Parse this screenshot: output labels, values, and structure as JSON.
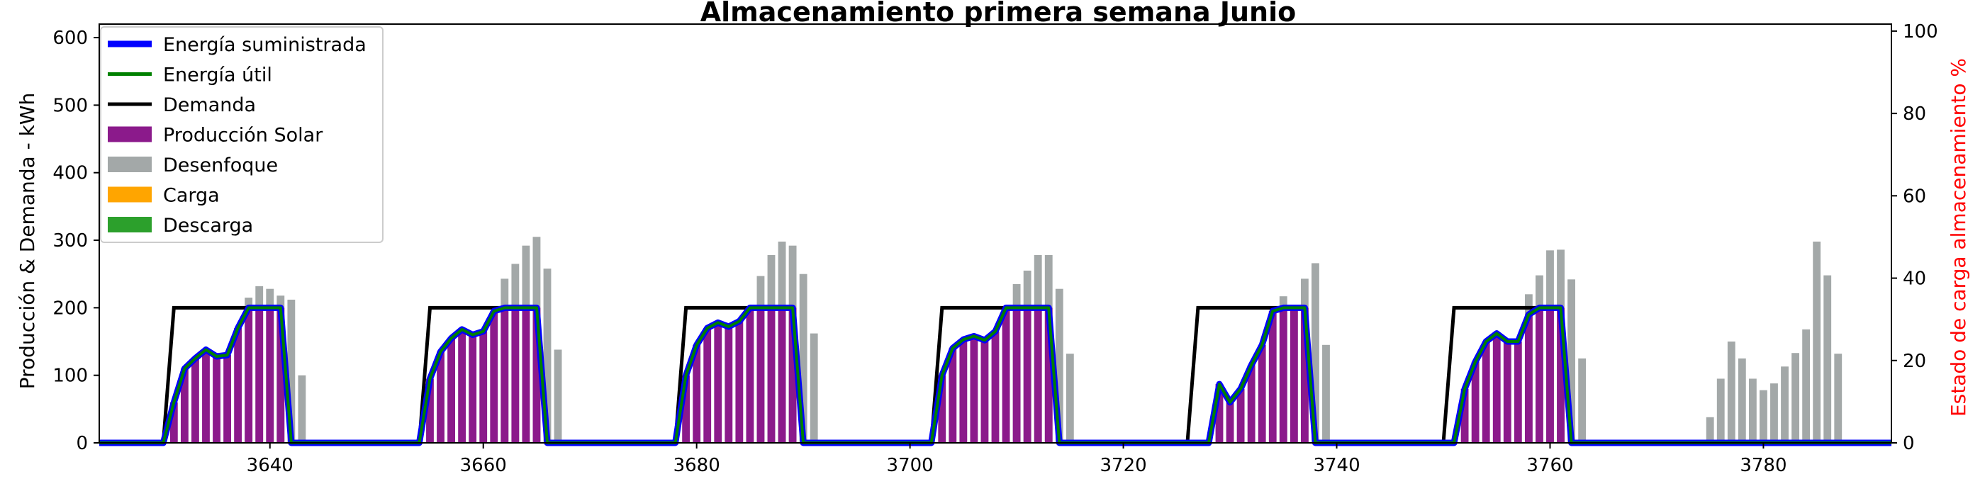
{
  "chart_data": {
    "type": "bar",
    "title": "Almacenamiento primera semana Junio",
    "xlabel": "",
    "ylabel": "Producción & Demanda - kWh",
    "ylabel_right": "Estado de carga almacenamiento %",
    "xlim": [
      3624,
      3792
    ],
    "ylim": [
      0,
      620
    ],
    "ylim_right": [
      0,
      101.7
    ],
    "x_ticks": [
      3640,
      3660,
      3680,
      3700,
      3720,
      3740,
      3760,
      3780
    ],
    "y_ticks": [
      0,
      100,
      200,
      300,
      400,
      500,
      600
    ],
    "y_ticks_right": [
      0,
      20,
      40,
      60,
      80,
      100
    ],
    "grid": false,
    "legend_position": "upper-left",
    "legend": [
      {
        "label": "Energía suministrada",
        "kind": "line",
        "color": "#0000ff"
      },
      {
        "label": "Energía útil",
        "kind": "line",
        "color": "#008000"
      },
      {
        "label": "Demanda",
        "kind": "line",
        "color": "#000000"
      },
      {
        "label": "Producción Solar",
        "kind": "patch",
        "color": "#8b1a8b"
      },
      {
        "label": "Desenfoque",
        "kind": "patch",
        "color": "#a3a8a8"
      },
      {
        "label": "Carga",
        "kind": "patch",
        "color": "#ffa500"
      },
      {
        "label": "Descarga",
        "kind": "patch",
        "color": "#2ca02c"
      }
    ],
    "colors": {
      "solar": "#8b1a8b",
      "defocus": "#a3a8a8",
      "supplied": "#0000ff",
      "useful": "#008000",
      "demand": "#000000",
      "storage": "#d62728"
    },
    "production_solar": [
      {
        "x": 3631,
        "y": 60
      },
      {
        "x": 3632,
        "y": 110
      },
      {
        "x": 3633,
        "y": 125
      },
      {
        "x": 3634,
        "y": 138
      },
      {
        "x": 3635,
        "y": 128
      },
      {
        "x": 3636,
        "y": 130
      },
      {
        "x": 3637,
        "y": 170
      },
      {
        "x": 3638,
        "y": 200
      },
      {
        "x": 3639,
        "y": 200
      },
      {
        "x": 3640,
        "y": 200
      },
      {
        "x": 3641,
        "y": 200
      },
      {
        "x": 3655,
        "y": 95
      },
      {
        "x": 3656,
        "y": 135
      },
      {
        "x": 3657,
        "y": 155
      },
      {
        "x": 3658,
        "y": 168
      },
      {
        "x": 3659,
        "y": 160
      },
      {
        "x": 3660,
        "y": 165
      },
      {
        "x": 3661,
        "y": 195
      },
      {
        "x": 3662,
        "y": 200
      },
      {
        "x": 3663,
        "y": 200
      },
      {
        "x": 3664,
        "y": 200
      },
      {
        "x": 3665,
        "y": 200
      },
      {
        "x": 3679,
        "y": 100
      },
      {
        "x": 3680,
        "y": 145
      },
      {
        "x": 3681,
        "y": 170
      },
      {
        "x": 3682,
        "y": 178
      },
      {
        "x": 3683,
        "y": 172
      },
      {
        "x": 3684,
        "y": 180
      },
      {
        "x": 3685,
        "y": 200
      },
      {
        "x": 3686,
        "y": 200
      },
      {
        "x": 3687,
        "y": 200
      },
      {
        "x": 3688,
        "y": 200
      },
      {
        "x": 3689,
        "y": 200
      },
      {
        "x": 3703,
        "y": 100
      },
      {
        "x": 3704,
        "y": 140
      },
      {
        "x": 3705,
        "y": 153
      },
      {
        "x": 3706,
        "y": 158
      },
      {
        "x": 3707,
        "y": 152
      },
      {
        "x": 3708,
        "y": 165
      },
      {
        "x": 3709,
        "y": 200
      },
      {
        "x": 3710,
        "y": 200
      },
      {
        "x": 3711,
        "y": 200
      },
      {
        "x": 3712,
        "y": 200
      },
      {
        "x": 3713,
        "y": 200
      },
      {
        "x": 3729,
        "y": 87
      },
      {
        "x": 3730,
        "y": 60
      },
      {
        "x": 3731,
        "y": 80
      },
      {
        "x": 3732,
        "y": 115
      },
      {
        "x": 3733,
        "y": 145
      },
      {
        "x": 3734,
        "y": 195
      },
      {
        "x": 3735,
        "y": 200
      },
      {
        "x": 3736,
        "y": 200
      },
      {
        "x": 3737,
        "y": 200
      },
      {
        "x": 3752,
        "y": 80
      },
      {
        "x": 3753,
        "y": 120
      },
      {
        "x": 3754,
        "y": 150
      },
      {
        "x": 3755,
        "y": 162
      },
      {
        "x": 3756,
        "y": 150
      },
      {
        "x": 3757,
        "y": 150
      },
      {
        "x": 3758,
        "y": 190
      },
      {
        "x": 3759,
        "y": 200
      },
      {
        "x": 3760,
        "y": 200
      },
      {
        "x": 3761,
        "y": 200
      }
    ],
    "desenfoque": [
      {
        "x": 3638,
        "y": 215
      },
      {
        "x": 3639,
        "y": 232
      },
      {
        "x": 3640,
        "y": 228
      },
      {
        "x": 3641,
        "y": 218
      },
      {
        "x": 3642,
        "y": 212
      },
      {
        "x": 3643,
        "y": 100
      },
      {
        "x": 3662,
        "y": 243
      },
      {
        "x": 3663,
        "y": 265
      },
      {
        "x": 3664,
        "y": 292
      },
      {
        "x": 3665,
        "y": 305
      },
      {
        "x": 3666,
        "y": 258
      },
      {
        "x": 3667,
        "y": 138
      },
      {
        "x": 3686,
        "y": 247
      },
      {
        "x": 3687,
        "y": 278
      },
      {
        "x": 3688,
        "y": 298
      },
      {
        "x": 3689,
        "y": 292
      },
      {
        "x": 3690,
        "y": 250
      },
      {
        "x": 3691,
        "y": 162
      },
      {
        "x": 3710,
        "y": 235
      },
      {
        "x": 3711,
        "y": 255
      },
      {
        "x": 3712,
        "y": 278
      },
      {
        "x": 3713,
        "y": 278
      },
      {
        "x": 3714,
        "y": 228
      },
      {
        "x": 3715,
        "y": 132
      },
      {
        "x": 3735,
        "y": 217
      },
      {
        "x": 3736,
        "y": 203
      },
      {
        "x": 3737,
        "y": 243
      },
      {
        "x": 3738,
        "y": 266
      },
      {
        "x": 3739,
        "y": 145
      },
      {
        "x": 3758,
        "y": 220
      },
      {
        "x": 3759,
        "y": 248
      },
      {
        "x": 3760,
        "y": 285
      },
      {
        "x": 3761,
        "y": 286
      },
      {
        "x": 3762,
        "y": 242
      },
      {
        "x": 3763,
        "y": 125
      },
      {
        "x": 3775,
        "y": 38
      },
      {
        "x": 3776,
        "y": 95
      },
      {
        "x": 3777,
        "y": 150
      },
      {
        "x": 3778,
        "y": 125
      },
      {
        "x": 3779,
        "y": 95
      },
      {
        "x": 3780,
        "y": 78
      },
      {
        "x": 3781,
        "y": 88
      },
      {
        "x": 3782,
        "y": 113
      },
      {
        "x": 3783,
        "y": 133
      },
      {
        "x": 3784,
        "y": 168
      },
      {
        "x": 3785,
        "y": 298
      },
      {
        "x": 3786,
        "y": 248
      },
      {
        "x": 3787,
        "y": 132
      }
    ],
    "energia_util": [
      {
        "x": 3624,
        "y": 0
      },
      {
        "x": 3630,
        "y": 0
      },
      {
        "x": 3631,
        "y": 60
      },
      {
        "x": 3632,
        "y": 110
      },
      {
        "x": 3633,
        "y": 125
      },
      {
        "x": 3634,
        "y": 138
      },
      {
        "x": 3635,
        "y": 128
      },
      {
        "x": 3636,
        "y": 130
      },
      {
        "x": 3637,
        "y": 170
      },
      {
        "x": 3638,
        "y": 200
      },
      {
        "x": 3641,
        "y": 200
      },
      {
        "x": 3642,
        "y": 0
      },
      {
        "x": 3654,
        "y": 0
      },
      {
        "x": 3655,
        "y": 95
      },
      {
        "x": 3656,
        "y": 135
      },
      {
        "x": 3657,
        "y": 155
      },
      {
        "x": 3658,
        "y": 168
      },
      {
        "x": 3659,
        "y": 160
      },
      {
        "x": 3660,
        "y": 165
      },
      {
        "x": 3661,
        "y": 195
      },
      {
        "x": 3662,
        "y": 200
      },
      {
        "x": 3665,
        "y": 200
      },
      {
        "x": 3666,
        "y": 0
      },
      {
        "x": 3678,
        "y": 0
      },
      {
        "x": 3679,
        "y": 100
      },
      {
        "x": 3680,
        "y": 145
      },
      {
        "x": 3681,
        "y": 170
      },
      {
        "x": 3682,
        "y": 178
      },
      {
        "x": 3683,
        "y": 172
      },
      {
        "x": 3684,
        "y": 180
      },
      {
        "x": 3685,
        "y": 200
      },
      {
        "x": 3689,
        "y": 200
      },
      {
        "x": 3690,
        "y": 0
      },
      {
        "x": 3702,
        "y": 0
      },
      {
        "x": 3703,
        "y": 100
      },
      {
        "x": 3704,
        "y": 140
      },
      {
        "x": 3705,
        "y": 153
      },
      {
        "x": 3706,
        "y": 158
      },
      {
        "x": 3707,
        "y": 152
      },
      {
        "x": 3708,
        "y": 165
      },
      {
        "x": 3709,
        "y": 200
      },
      {
        "x": 3713,
        "y": 200
      },
      {
        "x": 3714,
        "y": 0
      },
      {
        "x": 3728,
        "y": 0
      },
      {
        "x": 3729,
        "y": 87
      },
      {
        "x": 3730,
        "y": 60
      },
      {
        "x": 3731,
        "y": 80
      },
      {
        "x": 3732,
        "y": 115
      },
      {
        "x": 3733,
        "y": 145
      },
      {
        "x": 3734,
        "y": 195
      },
      {
        "x": 3735,
        "y": 200
      },
      {
        "x": 3737,
        "y": 200
      },
      {
        "x": 3738,
        "y": 0
      },
      {
        "x": 3751,
        "y": 0
      },
      {
        "x": 3752,
        "y": 80
      },
      {
        "x": 3753,
        "y": 120
      },
      {
        "x": 3754,
        "y": 150
      },
      {
        "x": 3755,
        "y": 162
      },
      {
        "x": 3756,
        "y": 150
      },
      {
        "x": 3757,
        "y": 150
      },
      {
        "x": 3758,
        "y": 190
      },
      {
        "x": 3759,
        "y": 200
      },
      {
        "x": 3761,
        "y": 200
      },
      {
        "x": 3762,
        "y": 0
      },
      {
        "x": 3792,
        "y": 0
      }
    ],
    "demanda": [
      {
        "x": 3624,
        "y": 0
      },
      {
        "x": 3630,
        "y": 0
      },
      {
        "x": 3631,
        "y": 200
      },
      {
        "x": 3641,
        "y": 200
      },
      {
        "x": 3642,
        "y": 0
      },
      {
        "x": 3654,
        "y": 0
      },
      {
        "x": 3655,
        "y": 200
      },
      {
        "x": 3665,
        "y": 200
      },
      {
        "x": 3666,
        "y": 0
      },
      {
        "x": 3678,
        "y": 0
      },
      {
        "x": 3679,
        "y": 200
      },
      {
        "x": 3689,
        "y": 200
      },
      {
        "x": 3690,
        "y": 0
      },
      {
        "x": 3702,
        "y": 0
      },
      {
        "x": 3703,
        "y": 200
      },
      {
        "x": 3713,
        "y": 200
      },
      {
        "x": 3714,
        "y": 0
      },
      {
        "x": 3726,
        "y": 0
      },
      {
        "x": 3727,
        "y": 200
      },
      {
        "x": 3737,
        "y": 200
      },
      {
        "x": 3738,
        "y": 0
      },
      {
        "x": 3750,
        "y": 0
      },
      {
        "x": 3751,
        "y": 200
      },
      {
        "x": 3761,
        "y": 200
      },
      {
        "x": 3762,
        "y": 0
      },
      {
        "x": 3792,
        "y": 0
      }
    ],
    "estado_carga": [
      {
        "x": 3624,
        "y": 0
      },
      {
        "x": 3792,
        "y": 0
      }
    ]
  }
}
